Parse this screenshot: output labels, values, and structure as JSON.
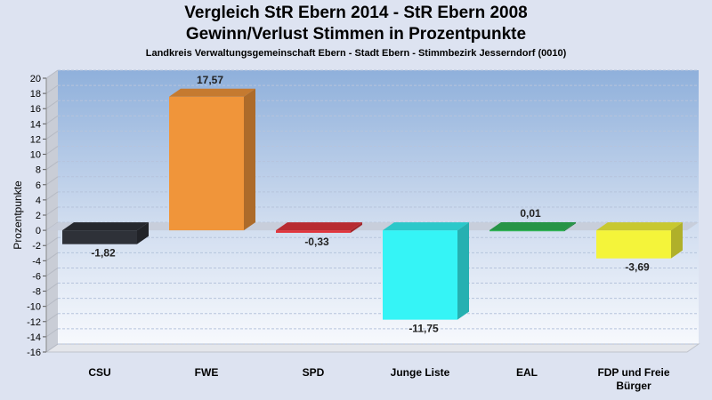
{
  "chart_data": {
    "type": "bar",
    "title": "Vergleich StR Ebern 2014 - StR Ebern 2008",
    "title2": "Gewinn/Verlust Stimmen in Prozentpunkte",
    "subtitle": "Landkreis Verwaltungsgemeinschaft Ebern - Stadt Ebern - Stimmbezirk Jesserndorf (0010)",
    "ylabel": "Prozentpunkte",
    "xlabel": "",
    "ylim": [
      -16,
      20
    ],
    "ytick_step": 2,
    "grid": true,
    "categories": [
      "CSU",
      "FWE",
      "SPD",
      "Junge Liste",
      "EAL",
      "FDP und Freie Bürger"
    ],
    "category_lines": [
      [
        "CSU"
      ],
      [
        "FWE"
      ],
      [
        "SPD"
      ],
      [
        "Junge Liste"
      ],
      [
        "EAL"
      ],
      [
        "FDP und Freie",
        "Bürger"
      ]
    ],
    "values": [
      -1.82,
      17.57,
      -0.33,
      -11.75,
      0.01,
      -3.69
    ],
    "value_labels": [
      "-1,82",
      "17,57",
      "-0,33",
      "-11,75",
      "0,01",
      "-3,69"
    ],
    "colors": [
      "#2e3138",
      "#f0953a",
      "#e0353c",
      "#35f4f6",
      "#2fb455",
      "#f4f43a"
    ]
  }
}
